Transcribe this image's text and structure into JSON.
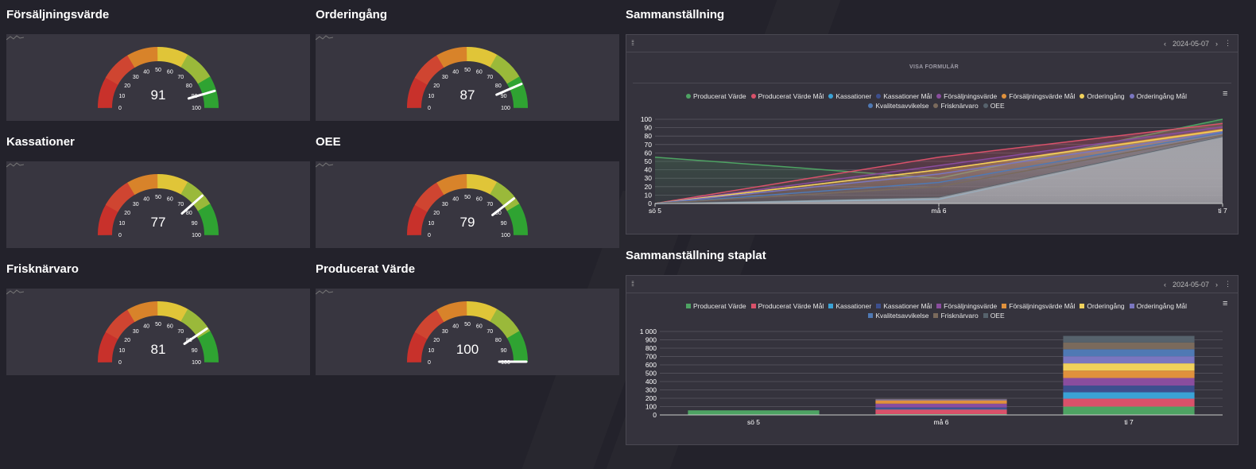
{
  "gauges": [
    {
      "title": "Försäljningsvärde",
      "value": "91",
      "level": 91
    },
    {
      "title": "Orderingång",
      "value": "87",
      "level": 87
    },
    {
      "title": "Kassationer",
      "value": "77",
      "level": 77
    },
    {
      "title": "OEE",
      "value": "79",
      "level": 79
    },
    {
      "title": "Frisknärvaro",
      "value": "81",
      "level": 81
    },
    {
      "title": "Producerat Värde",
      "value": "100",
      "level": 100
    }
  ],
  "gauge_ticks": [
    "0",
    "10",
    "20",
    "30",
    "40",
    "50",
    "60",
    "70",
    "80",
    "90",
    "100"
  ],
  "gauge_band_colors": [
    "#c8312b",
    "#cf4531",
    "#d8832a",
    "#e0c538",
    "#9ab93a",
    "#2fa332"
  ],
  "summary": {
    "title": "Sammanställning",
    "date": "2024-05-07",
    "form_button": "VISA FORMULÄR",
    "prev_icon": "chevron-left-icon",
    "next_icon": "chevron-right-icon"
  },
  "stacked": {
    "title": "Sammanställning staplat",
    "date": "2024-05-07"
  },
  "legend": [
    {
      "name": "Producerat Värde",
      "color": "#4ea363"
    },
    {
      "name": "Producerat Värde Mål",
      "color": "#d9516a"
    },
    {
      "name": "Kassationer",
      "color": "#3aa2d6"
    },
    {
      "name": "Kassationer Mål",
      "color": "#3d4f8f"
    },
    {
      "name": "Försäljningsvärde",
      "color": "#8a4d9e"
    },
    {
      "name": "Försäljningsvärde Mål",
      "color": "#e0913c"
    },
    {
      "name": "Orderingång",
      "color": "#f1d15c"
    },
    {
      "name": "Orderingång Mål",
      "color": "#7a76c0"
    },
    {
      "name": "Kvalitetsavvikelse",
      "color": "#4f79b4"
    },
    {
      "name": "Frisknärvaro",
      "color": "#7a6a5c"
    },
    {
      "name": "OEE",
      "color": "#56626c"
    }
  ],
  "chart_data": [
    {
      "type": "area",
      "title": "",
      "categories": [
        "sö 5",
        "må 6",
        "ti 7"
      ],
      "y_ticks": [
        "0",
        "10",
        "20",
        "30",
        "40",
        "50",
        "60",
        "70",
        "80",
        "90",
        "100"
      ],
      "ylim": [
        0,
        100
      ],
      "series": [
        {
          "name": "Producerat Värde",
          "values": [
            55,
            30,
            100
          ]
        },
        {
          "name": "Producerat Värde Mål",
          "values": [
            0,
            55,
            95
          ]
        },
        {
          "name": "Kassationer",
          "values": [
            0,
            5,
            77
          ]
        },
        {
          "name": "Kassationer Mål",
          "values": [
            0,
            20,
            80
          ]
        },
        {
          "name": "Försäljningsvärde",
          "values": [
            0,
            45,
            91
          ]
        },
        {
          "name": "Försäljningsvärde Mål",
          "values": [
            0,
            40,
            88
          ]
        },
        {
          "name": "Orderingång",
          "values": [
            0,
            40,
            87
          ]
        },
        {
          "name": "Orderingång Mål",
          "values": [
            0,
            35,
            85
          ]
        },
        {
          "name": "Kvalitetsavvikelse",
          "values": [
            0,
            25,
            84
          ]
        },
        {
          "name": "Frisknärvaro",
          "values": [
            0,
            20,
            81
          ]
        },
        {
          "name": "OEE",
          "values": [
            0,
            7,
            79
          ]
        }
      ]
    },
    {
      "type": "bar",
      "title": "",
      "categories": [
        "sö 5",
        "må 6",
        "ti 7"
      ],
      "y_ticks": [
        "0",
        "100",
        "200",
        "300",
        "400",
        "500",
        "600",
        "700",
        "800",
        "900",
        "1 000"
      ],
      "ylim": [
        0,
        1000
      ],
      "stacked": true,
      "series": [
        {
          "name": "Producerat Värde",
          "values": [
            55,
            10,
            100
          ]
        },
        {
          "name": "Producerat Värde Mål",
          "values": [
            0,
            55,
            95
          ]
        },
        {
          "name": "Kassationer",
          "values": [
            0,
            5,
            77
          ]
        },
        {
          "name": "Kassationer Mål",
          "values": [
            0,
            20,
            80
          ]
        },
        {
          "name": "Försäljningsvärde",
          "values": [
            0,
            45,
            91
          ]
        },
        {
          "name": "Försäljningsvärde Mål",
          "values": [
            0,
            40,
            88
          ]
        },
        {
          "name": "Orderingång",
          "values": [
            0,
            0,
            87
          ]
        },
        {
          "name": "Orderingång Mål",
          "values": [
            0,
            10,
            85
          ]
        },
        {
          "name": "Kvalitetsavvikelse",
          "values": [
            0,
            0,
            84
          ]
        },
        {
          "name": "Frisknärvaro",
          "values": [
            0,
            7,
            81
          ]
        },
        {
          "name": "OEE",
          "values": [
            0,
            0,
            79
          ]
        }
      ]
    }
  ]
}
